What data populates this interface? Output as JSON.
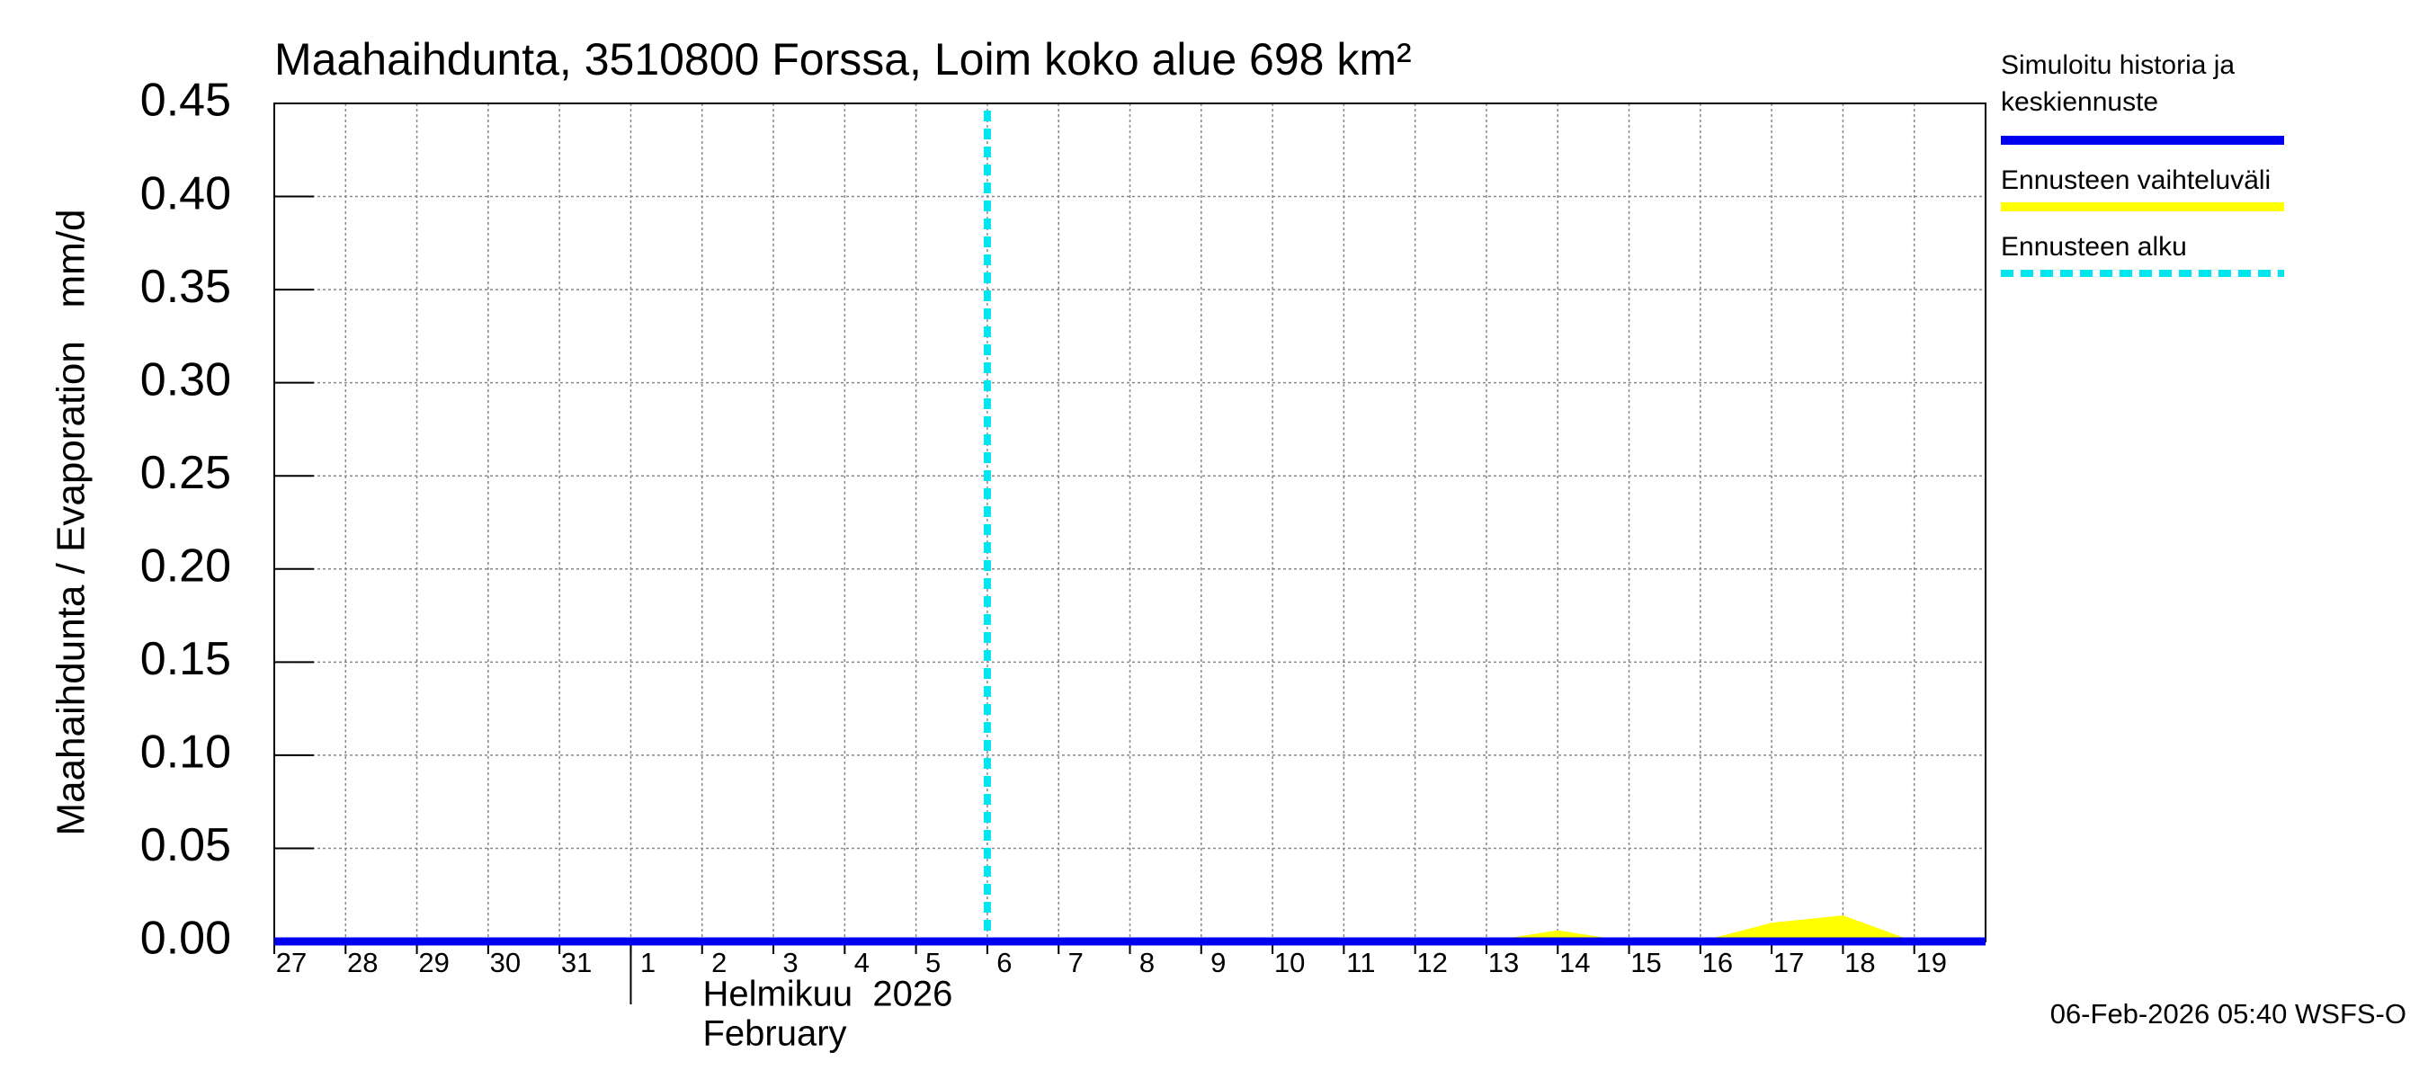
{
  "chart_data": {
    "type": "line",
    "title": "Maahaihdunta, 3510800 Forssa, Loim koko alue 698 km²",
    "y_label": "Maahaihdunta / Evaporation   mm/d",
    "x_axis_labels": [
      "Helmikuu  2026",
      "February"
    ],
    "footer": "06-Feb-2026 05:40 WSFS-O",
    "x": [
      "2026-01-27",
      "2026-01-28",
      "2026-01-29",
      "2026-01-30",
      "2026-01-31",
      "2026-02-01",
      "2026-02-02",
      "2026-02-03",
      "2026-02-04",
      "2026-02-05",
      "2026-02-06",
      "2026-02-07",
      "2026-02-08",
      "2026-02-09",
      "2026-02-10",
      "2026-02-11",
      "2026-02-12",
      "2026-02-13",
      "2026-02-14",
      "2026-02-15",
      "2026-02-16",
      "2026-02-17",
      "2026-02-18",
      "2026-02-19",
      "2026-02-20"
    ],
    "xlim": [
      "2026-01-27",
      "2026-02-20"
    ],
    "xticks": [
      {
        "value": "2026-01-27",
        "label": "27"
      },
      {
        "value": "2026-01-28",
        "label": "28"
      },
      {
        "value": "2026-01-29",
        "label": "29"
      },
      {
        "value": "2026-01-30",
        "label": "30"
      },
      {
        "value": "2026-01-31",
        "label": "31"
      },
      {
        "value": "2026-02-01",
        "label": "1"
      },
      {
        "value": "2026-02-02",
        "label": "2"
      },
      {
        "value": "2026-02-03",
        "label": "3"
      },
      {
        "value": "2026-02-04",
        "label": "4"
      },
      {
        "value": "2026-02-05",
        "label": "5"
      },
      {
        "value": "2026-02-06",
        "label": "6"
      },
      {
        "value": "2026-02-07",
        "label": "7"
      },
      {
        "value": "2026-02-08",
        "label": "8"
      },
      {
        "value": "2026-02-09",
        "label": "9"
      },
      {
        "value": "2026-02-10",
        "label": "10"
      },
      {
        "value": "2026-02-11",
        "label": "11"
      },
      {
        "value": "2026-02-12",
        "label": "12"
      },
      {
        "value": "2026-02-13",
        "label": "13"
      },
      {
        "value": "2026-02-14",
        "label": "14"
      },
      {
        "value": "2026-02-15",
        "label": "15"
      },
      {
        "value": "2026-02-16",
        "label": "16"
      },
      {
        "value": "2026-02-17",
        "label": "17"
      },
      {
        "value": "2026-02-18",
        "label": "18"
      },
      {
        "value": "2026-02-19",
        "label": "19"
      }
    ],
    "ylim": [
      0,
      0.45
    ],
    "yticks": [
      {
        "value": 0,
        "label": "0.00"
      },
      {
        "value": 0.05,
        "label": "0.05"
      },
      {
        "value": 0.1,
        "label": "0.10"
      },
      {
        "value": 0.15,
        "label": "0.15"
      },
      {
        "value": 0.2,
        "label": "0.20"
      },
      {
        "value": 0.25,
        "label": "0.25"
      },
      {
        "value": 0.3,
        "label": "0.30"
      },
      {
        "value": 0.35,
        "label": "0.35"
      },
      {
        "value": 0.4,
        "label": "0.40"
      },
      {
        "value": 0.45,
        "label": "0.45"
      }
    ],
    "grid": true,
    "series": [
      {
        "name": "Simuloitu historia ja keskiennuste",
        "legend_lines": [
          "Simuloitu historia ja",
          "keskiennuste"
        ],
        "color": "#0000ee",
        "kind": "line",
        "values": [
          0,
          0,
          0,
          0,
          0,
          0,
          0,
          0,
          0,
          0,
          0,
          0,
          0,
          0,
          0,
          0,
          0,
          0,
          0,
          0,
          0,
          0,
          0,
          0,
          0
        ]
      },
      {
        "name": "Ennusteen vaihteluväli",
        "color": "#ffff00",
        "kind": "area",
        "values": [
          null,
          null,
          null,
          null,
          null,
          null,
          null,
          null,
          null,
          null,
          0,
          0,
          0,
          0,
          0,
          0,
          0,
          0,
          0.006,
          0,
          0,
          0.01,
          0.014,
          0,
          0
        ]
      }
    ],
    "forecast_start": {
      "name": "Ennusteen alku",
      "x": "2026-02-06",
      "color": "#00e5ee"
    }
  }
}
